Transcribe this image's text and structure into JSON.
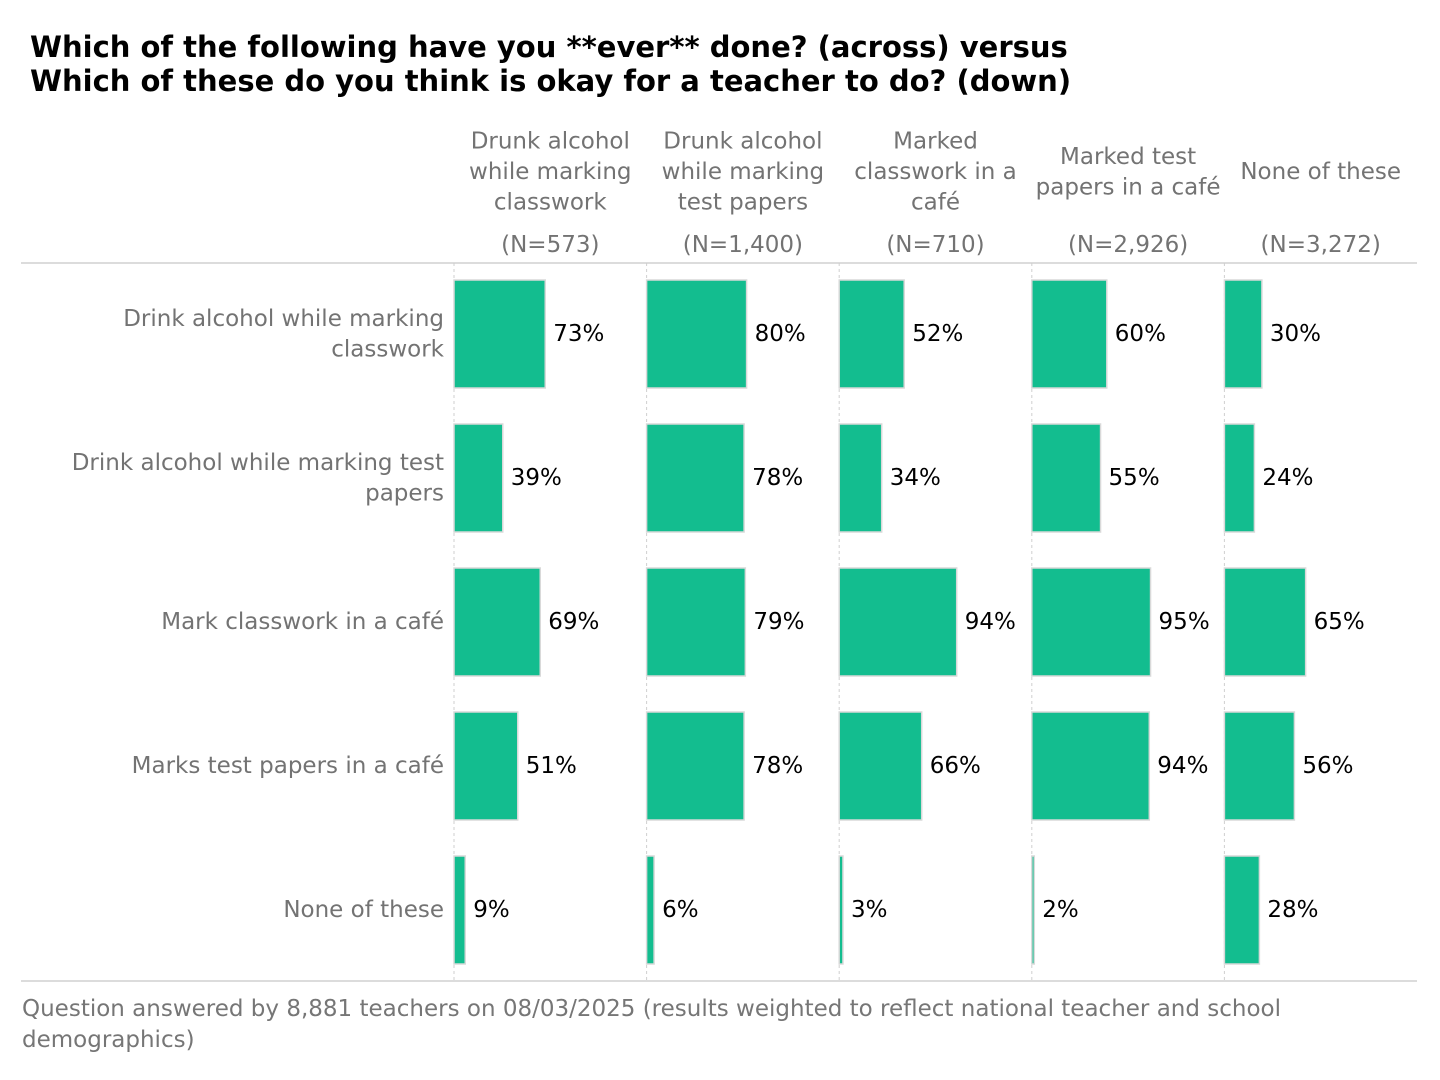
{
  "title_lines": [
    "Which of the following have you **ever** done? (across) versus",
    "Which of these do you think is okay for a teacher to do? (down)"
  ],
  "footer": "Question answered by 8,881 teachers on 08/03/2025 (results weighted to reflect national teacher and school demographics)",
  "colors": {
    "bar": "#13bd8f",
    "bar_border": "#d9d9d9",
    "muted_text": "#737373",
    "value_text": "#000000"
  },
  "chart_data": {
    "type": "bar",
    "title": "Which of the following have you **ever** done? (across) versus Which of these do you think is okay for a teacher to do? (down)",
    "columns": [
      {
        "lines": [
          "Drunk alcohol",
          "while marking",
          "classwork"
        ],
        "n": "(N=573)"
      },
      {
        "lines": [
          "Drunk alcohol",
          "while marking",
          "test papers"
        ],
        "n": "(N=1,400)"
      },
      {
        "lines": [
          "Marked",
          "classwork in a",
          "café"
        ],
        "n": "(N=710)"
      },
      {
        "lines": [
          "Marked test",
          "papers in a café"
        ],
        "n": "(N=2,926)"
      },
      {
        "lines": [
          "None of these"
        ],
        "n": "(N=3,272)"
      }
    ],
    "rows": [
      {
        "lines": [
          "Drink alcohol while marking",
          "classwork"
        ],
        "values": [
          73,
          80,
          52,
          60,
          30
        ]
      },
      {
        "lines": [
          "Drink alcohol while marking test",
          "papers"
        ],
        "values": [
          39,
          78,
          34,
          55,
          24
        ]
      },
      {
        "lines": [
          "Mark classwork in a café"
        ],
        "values": [
          69,
          79,
          94,
          95,
          65
        ]
      },
      {
        "lines": [
          "Marks test papers in a café"
        ],
        "values": [
          51,
          78,
          66,
          94,
          56
        ]
      },
      {
        "lines": [
          "None of these"
        ],
        "values": [
          9,
          6,
          3,
          2,
          28
        ]
      }
    ],
    "value_suffix": "%",
    "xlim": [
      0,
      100
    ]
  }
}
